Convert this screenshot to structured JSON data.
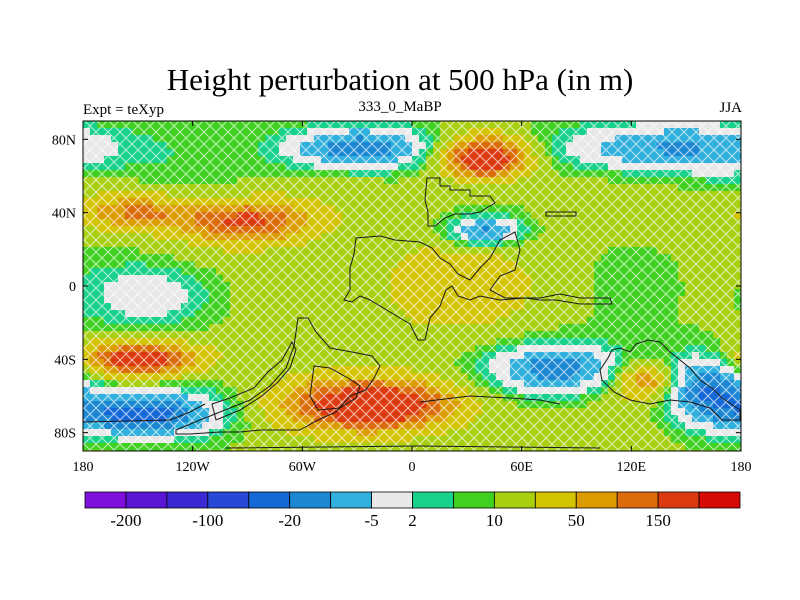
{
  "header": {
    "title": "Height perturbation at 500 hPa (in m)",
    "left": "Expt = teXyp",
    "center": "333_0_MaBP",
    "right": "JJA"
  },
  "map": {
    "projection": "cylindrical equidistant",
    "lon_range": [
      -180,
      180
    ],
    "lat_range": [
      -90,
      90
    ],
    "x_ticks": [
      {
        "lon": -180,
        "label": "180"
      },
      {
        "lon": -120,
        "label": "120W"
      },
      {
        "lon": -60,
        "label": "60W"
      },
      {
        "lon": 0,
        "label": "0"
      },
      {
        "lon": 60,
        "label": "60E"
      },
      {
        "lon": 120,
        "label": "120E"
      },
      {
        "lon": 180,
        "label": "180"
      }
    ],
    "y_ticks": [
      {
        "lat": 80,
        "label": "80N"
      },
      {
        "lat": 40,
        "label": "40N"
      },
      {
        "lat": 0,
        "label": "0"
      },
      {
        "lat": -40,
        "label": "40S"
      },
      {
        "lat": -80,
        "label": "80S"
      }
    ]
  },
  "colorbar": {
    "colors": [
      "#7f10dc",
      "#5a16d2",
      "#3c28d2",
      "#2848d8",
      "#1668d6",
      "#1c88d4",
      "#30b0dc",
      "#e8e8e8",
      "#18d28c",
      "#40d020",
      "#a8d010",
      "#d4c400",
      "#dc9c00",
      "#dc6c0a",
      "#dc3a10",
      "#d80a08"
    ],
    "labels": [
      {
        "index": 1,
        "text": "-200"
      },
      {
        "index": 3,
        "text": "-100"
      },
      {
        "index": 5,
        "text": "-20"
      },
      {
        "index": 7,
        "text": "-5"
      },
      {
        "index": 8,
        "text": "2"
      },
      {
        "index": 10,
        "text": "10"
      },
      {
        "index": 12,
        "text": "50"
      },
      {
        "index": 14,
        "text": "150"
      }
    ]
  },
  "field_features": [
    {
      "lon": -30,
      "lat": 75,
      "amp": -1.2,
      "rx": 40,
      "ry": 12
    },
    {
      "lon": 140,
      "lat": 75,
      "amp": -1.0,
      "rx": 60,
      "ry": 14
    },
    {
      "lon": 40,
      "lat": 70,
      "amp": 1.6,
      "rx": 25,
      "ry": 12
    },
    {
      "lon": 40,
      "lat": 30,
      "amp": -1.0,
      "rx": 20,
      "ry": 8
    },
    {
      "lon": -150,
      "lat": 40,
      "amp": 0.8,
      "rx": 30,
      "ry": 10
    },
    {
      "lon": -90,
      "lat": 35,
      "amp": 1.1,
      "rx": 35,
      "ry": 12
    },
    {
      "lon": -140,
      "lat": -5,
      "amp": -0.6,
      "rx": 35,
      "ry": 18
    },
    {
      "lon": -150,
      "lat": -40,
      "amp": 1.3,
      "rx": 35,
      "ry": 10
    },
    {
      "lon": -150,
      "lat": -70,
      "amp": -1.4,
      "rx": 40,
      "ry": 12
    },
    {
      "lon": -20,
      "lat": -65,
      "amp": 1.4,
      "rx": 50,
      "ry": 14
    },
    {
      "lon": 80,
      "lat": -45,
      "amp": -1.1,
      "rx": 35,
      "ry": 14
    },
    {
      "lon": 130,
      "lat": -52,
      "amp": 0.9,
      "rx": 18,
      "ry": 10
    },
    {
      "lon": 160,
      "lat": -55,
      "amp": -1.2,
      "rx": 25,
      "ry": 18
    },
    {
      "lon": 10,
      "lat": 0,
      "amp": 0.3,
      "rx": 60,
      "ry": 30
    }
  ]
}
